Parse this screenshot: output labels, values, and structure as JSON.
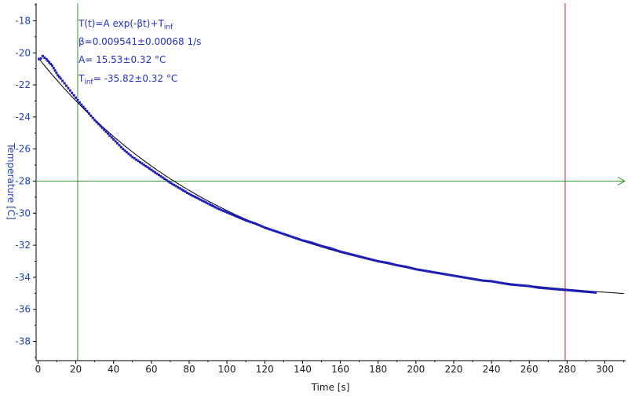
{
  "chart_data": {
    "type": "scatter",
    "xlabel": "Time [s]",
    "ylabel": "Temperature [C]",
    "xlim": [
      -1,
      311
    ],
    "ylim": [
      -39.2,
      -16.9
    ],
    "x_ticks": [
      0,
      20,
      40,
      60,
      80,
      100,
      120,
      140,
      160,
      180,
      200,
      220,
      240,
      260,
      280,
      300
    ],
    "y_ticks": [
      -18,
      -20,
      -22,
      -24,
      -26,
      -28,
      -30,
      -32,
      -34,
      -36,
      -38
    ],
    "grid": false,
    "annotations": {
      "line1": "T(t)=A exp(-βt)+T",
      "line1_sub": "inf",
      "line2": "β=0.009541±0.00068 1/s",
      "line3": "A= 15.53±0.32 °C",
      "line4_prefix": "T",
      "line4_sub": "inf",
      "line4_rest": "= -35.82±0.32 °C"
    },
    "fit": {
      "A": 15.53,
      "beta": 0.009541,
      "T_inf": -35.82,
      "x_range": [
        0,
        311
      ]
    },
    "markers": {
      "vertical_green_x": 21,
      "vertical_red_x": 279,
      "horizontal_green_y": -28
    },
    "series": [
      {
        "points": [
          [
            0.5,
            -20.4
          ],
          [
            1.5,
            -20.35
          ],
          [
            2.5,
            -20.2
          ],
          [
            3.5,
            -20.3
          ],
          [
            4.5,
            -20.4
          ],
          [
            6,
            -20.6
          ],
          [
            7.5,
            -20.8
          ],
          [
            9,
            -21.1
          ],
          [
            10.5,
            -21.4
          ],
          [
            12,
            -21.6
          ],
          [
            14,
            -21.9
          ],
          [
            16,
            -22.2
          ],
          [
            18,
            -22.5
          ],
          [
            20,
            -22.8
          ],
          [
            22,
            -23.1
          ],
          [
            25,
            -23.5
          ],
          [
            30,
            -24.2
          ],
          [
            35,
            -24.8
          ],
          [
            40,
            -25.4
          ],
          [
            45,
            -26.0
          ],
          [
            50,
            -26.5
          ],
          [
            55,
            -26.9
          ],
          [
            60,
            -27.3
          ],
          [
            65,
            -27.7
          ],
          [
            70,
            -28.1
          ],
          [
            75,
            -28.45
          ],
          [
            80,
            -28.8
          ],
          [
            85,
            -29.1
          ],
          [
            90,
            -29.4
          ],
          [
            95,
            -29.7
          ],
          [
            100,
            -29.95
          ],
          [
            105,
            -30.2
          ],
          [
            110,
            -30.45
          ],
          [
            115,
            -30.65
          ],
          [
            120,
            -30.9
          ],
          [
            125,
            -31.1
          ],
          [
            130,
            -31.3
          ],
          [
            135,
            -31.5
          ],
          [
            140,
            -31.7
          ],
          [
            145,
            -31.85
          ],
          [
            150,
            -32.05
          ],
          [
            155,
            -32.2
          ],
          [
            160,
            -32.4
          ],
          [
            165,
            -32.55
          ],
          [
            170,
            -32.7
          ],
          [
            175,
            -32.85
          ],
          [
            180,
            -33.0
          ],
          [
            185,
            -33.1
          ],
          [
            190,
            -33.25
          ],
          [
            195,
            -33.35
          ],
          [
            200,
            -33.5
          ],
          [
            205,
            -33.6
          ],
          [
            210,
            -33.7
          ],
          [
            215,
            -33.8
          ],
          [
            220,
            -33.9
          ],
          [
            225,
            -34.0
          ],
          [
            230,
            -34.1
          ],
          [
            235,
            -34.2
          ],
          [
            240,
            -34.25
          ],
          [
            245,
            -34.35
          ],
          [
            250,
            -34.45
          ],
          [
            255,
            -34.5
          ],
          [
            260,
            -34.55
          ],
          [
            265,
            -34.65
          ],
          [
            270,
            -34.7
          ],
          [
            275,
            -34.75
          ],
          [
            280,
            -34.8
          ],
          [
            285,
            -34.85
          ],
          [
            290,
            -34.9
          ],
          [
            295,
            -34.95
          ]
        ]
      }
    ],
    "colors": {
      "data": "#1d1db8",
      "fit": "#000000",
      "green": "#2e9a2e",
      "red": "#c8201e",
      "axis": "#000000",
      "ylabel": "#1f3fbf",
      "xlabel": "#1a1a1a"
    }
  }
}
